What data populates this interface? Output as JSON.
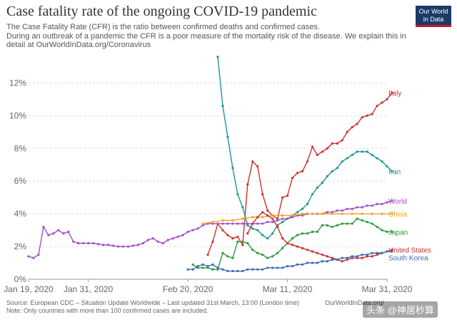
{
  "header": {
    "title": "Case fatality rate of the ongoing COVID-19 pandemic",
    "subtitle_lines": [
      "The Case Fatality Rate (CFR) is the ratio between confirmed deaths and confirmed cases.",
      " During an outbreak of a pandemic the CFR is a poor measure of the mortality risk of the disease. We explain this in",
      "detail at OurWorldInData.org/Coronavirus"
    ]
  },
  "logo": {
    "line1": "Our World",
    "line2": "in Data",
    "bg": "#1a3a68",
    "accent": "#c21a2b"
  },
  "footer": {
    "source": "Source: European CDC – Situation Update Worldwide – Last updated 31st March, 13:00 (London time)",
    "site": "OurWorldInData.org/",
    "note": "Note: Only countries with more than 100 confirmed cases are included."
  },
  "watermark": "头条 @神居秒算",
  "chart_data": {
    "type": "line",
    "title": "Case fatality rate of the ongoing COVID-19 pandemic",
    "x_start": "2020-01-19",
    "x_ticks": [
      {
        "day": 0,
        "label": "Jan 19, 2020"
      },
      {
        "day": 12,
        "label": "Jan 31, 2020"
      },
      {
        "day": 32,
        "label": "Feb 20, 2020"
      },
      {
        "day": 52,
        "label": "Mar 11, 2020"
      },
      {
        "day": 72,
        "label": "Mar 31, 2020"
      }
    ],
    "y_ticks": [
      0,
      2,
      4,
      6,
      8,
      10,
      12
    ],
    "ylim": [
      0,
      13.5
    ],
    "y_unit": "%",
    "grid": "horizontal-dashed",
    "series": [
      {
        "name": "Italy",
        "color": "#d0312d",
        "points": [
          [
            36,
            1.5
          ],
          [
            37,
            2.3
          ],
          [
            38,
            3.4
          ],
          [
            39,
            3.0
          ],
          [
            40,
            2.7
          ],
          [
            41,
            2.5
          ],
          [
            42,
            2.6
          ],
          [
            43,
            2.1
          ],
          [
            44,
            5.8
          ],
          [
            45,
            7.2
          ],
          [
            46,
            6.9
          ],
          [
            47,
            5.2
          ],
          [
            48,
            4.2
          ],
          [
            49,
            3.9
          ],
          [
            50,
            3.7
          ],
          [
            51,
            5.0
          ],
          [
            52,
            5.1
          ],
          [
            53,
            6.2
          ],
          [
            54,
            6.5
          ],
          [
            55,
            6.6
          ],
          [
            56,
            7.2
          ],
          [
            57,
            8.1
          ],
          [
            58,
            7.6
          ],
          [
            59,
            7.8
          ],
          [
            60,
            8.0
          ],
          [
            61,
            8.3
          ],
          [
            62,
            8.3
          ],
          [
            63,
            8.5
          ],
          [
            64,
            9.0
          ],
          [
            65,
            9.3
          ],
          [
            66,
            9.5
          ],
          [
            67,
            9.9
          ],
          [
            68,
            10.0
          ],
          [
            69,
            10.1
          ],
          [
            70,
            10.6
          ],
          [
            71,
            10.8
          ],
          [
            72,
            11.0
          ],
          [
            73,
            11.4
          ]
        ]
      },
      {
        "name": "Iran",
        "color": "#1f9396",
        "points": [
          [
            38,
            13.6
          ],
          [
            39,
            10.6
          ],
          [
            40,
            8.7
          ],
          [
            41,
            6.8
          ],
          [
            42,
            5.2
          ],
          [
            43,
            4.4
          ],
          [
            44,
            3.3
          ],
          [
            45,
            3.1
          ],
          [
            46,
            3.0
          ],
          [
            47,
            2.7
          ],
          [
            48,
            2.5
          ],
          [
            49,
            2.8
          ],
          [
            50,
            3.3
          ],
          [
            51,
            3.5
          ],
          [
            52,
            3.7
          ],
          [
            53,
            3.9
          ],
          [
            54,
            4.1
          ],
          [
            55,
            4.3
          ],
          [
            56,
            4.6
          ],
          [
            57,
            5.2
          ],
          [
            58,
            5.6
          ],
          [
            59,
            5.9
          ],
          [
            60,
            6.3
          ],
          [
            61,
            6.6
          ],
          [
            62,
            6.8
          ],
          [
            63,
            7.2
          ],
          [
            64,
            7.4
          ],
          [
            65,
            7.6
          ],
          [
            66,
            7.8
          ],
          [
            67,
            7.8
          ],
          [
            68,
            7.8
          ],
          [
            69,
            7.6
          ],
          [
            70,
            7.4
          ],
          [
            71,
            7.2
          ],
          [
            72,
            6.9
          ],
          [
            73,
            6.6
          ]
        ]
      },
      {
        "name": "World",
        "color": "#a24fc9",
        "points": [
          [
            0,
            1.4
          ],
          [
            1,
            1.3
          ],
          [
            2,
            1.5
          ],
          [
            3,
            3.2
          ],
          [
            4,
            2.7
          ],
          [
            5,
            2.8
          ],
          [
            6,
            3.0
          ],
          [
            7,
            2.8
          ],
          [
            8,
            2.9
          ],
          [
            9,
            2.3
          ],
          [
            10,
            2.2
          ],
          [
            11,
            2.2
          ],
          [
            12,
            2.2
          ],
          [
            13,
            2.2
          ],
          [
            14,
            2.15
          ],
          [
            15,
            2.1
          ],
          [
            16,
            2.1
          ],
          [
            17,
            2.05
          ],
          [
            18,
            2.0
          ],
          [
            19,
            2.0
          ],
          [
            20,
            2.0
          ],
          [
            21,
            2.05
          ],
          [
            22,
            2.1
          ],
          [
            23,
            2.2
          ],
          [
            24,
            2.4
          ],
          [
            25,
            2.5
          ],
          [
            26,
            2.3
          ],
          [
            27,
            2.2
          ],
          [
            28,
            2.4
          ],
          [
            29,
            2.5
          ],
          [
            30,
            2.6
          ],
          [
            31,
            2.7
          ],
          [
            32,
            2.9
          ],
          [
            33,
            3.0
          ],
          [
            34,
            3.1
          ],
          [
            35,
            3.3
          ],
          [
            36,
            3.4
          ],
          [
            37,
            3.4
          ],
          [
            38,
            3.4
          ],
          [
            39,
            3.4
          ],
          [
            40,
            3.4
          ],
          [
            41,
            3.4
          ],
          [
            42,
            3.4
          ],
          [
            43,
            3.4
          ],
          [
            44,
            3.4
          ],
          [
            45,
            3.4
          ],
          [
            46,
            3.4
          ],
          [
            47,
            3.4
          ],
          [
            48,
            3.5
          ],
          [
            49,
            3.5
          ],
          [
            50,
            3.6
          ],
          [
            51,
            3.7
          ],
          [
            52,
            3.7
          ],
          [
            53,
            3.8
          ],
          [
            54,
            3.9
          ],
          [
            55,
            3.9
          ],
          [
            56,
            4.0
          ],
          [
            57,
            4.0
          ],
          [
            58,
            4.0
          ],
          [
            59,
            4.0
          ],
          [
            60,
            4.1
          ],
          [
            61,
            4.1
          ],
          [
            62,
            4.2
          ],
          [
            63,
            4.2
          ],
          [
            64,
            4.3
          ],
          [
            65,
            4.3
          ],
          [
            66,
            4.4
          ],
          [
            67,
            4.4
          ],
          [
            68,
            4.5
          ],
          [
            69,
            4.5
          ],
          [
            70,
            4.6
          ],
          [
            71,
            4.6
          ],
          [
            72,
            4.7
          ],
          [
            73,
            4.8
          ]
        ]
      },
      {
        "name": "China",
        "color": "#f0a323",
        "points": [
          [
            35,
            3.4
          ],
          [
            37,
            3.5
          ],
          [
            39,
            3.6
          ],
          [
            41,
            3.6
          ],
          [
            43,
            3.7
          ],
          [
            45,
            3.8
          ],
          [
            47,
            3.8
          ],
          [
            49,
            3.9
          ],
          [
            51,
            3.9
          ],
          [
            53,
            3.9
          ],
          [
            55,
            4.0
          ],
          [
            57,
            4.0
          ],
          [
            59,
            4.0
          ],
          [
            61,
            4.0
          ],
          [
            63,
            4.0
          ],
          [
            65,
            4.0
          ],
          [
            67,
            4.0
          ],
          [
            69,
            4.0
          ],
          [
            71,
            4.0
          ],
          [
            73,
            4.0
          ]
        ]
      },
      {
        "name": "Japan",
        "color": "#2f9a3d",
        "points": [
          [
            33,
            0.9
          ],
          [
            34,
            0.7
          ],
          [
            35,
            0.7
          ],
          [
            36,
            0.7
          ],
          [
            37,
            0.6
          ],
          [
            38,
            0.6
          ],
          [
            39,
            1.6
          ],
          [
            40,
            1.4
          ],
          [
            41,
            1.3
          ],
          [
            42,
            2.3
          ],
          [
            43,
            2.3
          ],
          [
            44,
            2.2
          ],
          [
            45,
            1.8
          ],
          [
            46,
            1.6
          ],
          [
            47,
            1.5
          ],
          [
            48,
            1.3
          ],
          [
            49,
            1.4
          ],
          [
            50,
            1.6
          ],
          [
            51,
            1.9
          ],
          [
            52,
            2.2
          ],
          [
            53,
            2.5
          ],
          [
            54,
            2.7
          ],
          [
            55,
            2.8
          ],
          [
            56,
            2.8
          ],
          [
            57,
            2.9
          ],
          [
            58,
            2.9
          ],
          [
            59,
            3.3
          ],
          [
            60,
            3.3
          ],
          [
            61,
            3.2
          ],
          [
            62,
            3.3
          ],
          [
            63,
            3.4
          ],
          [
            64,
            3.4
          ],
          [
            65,
            3.4
          ],
          [
            66,
            3.7
          ],
          [
            67,
            3.6
          ],
          [
            68,
            3.5
          ],
          [
            69,
            3.4
          ],
          [
            70,
            3.2
          ],
          [
            71,
            3.0
          ],
          [
            72,
            2.9
          ],
          [
            73,
            2.9
          ]
        ]
      },
      {
        "name": "United States",
        "color": "#c8302c",
        "points": [
          [
            44,
            2.8
          ],
          [
            45,
            3.4
          ],
          [
            46,
            3.8
          ],
          [
            47,
            4.1
          ],
          [
            48,
            3.9
          ],
          [
            49,
            3.7
          ],
          [
            50,
            3.2
          ],
          [
            51,
            2.5
          ],
          [
            52,
            2.2
          ],
          [
            53,
            2.1
          ],
          [
            54,
            2.0
          ],
          [
            55,
            1.9
          ],
          [
            56,
            1.8
          ],
          [
            57,
            1.7
          ],
          [
            58,
            1.6
          ],
          [
            59,
            1.5
          ],
          [
            60,
            1.4
          ],
          [
            61,
            1.3
          ],
          [
            62,
            1.2
          ],
          [
            63,
            1.1
          ],
          [
            64,
            1.2
          ],
          [
            65,
            1.3
          ],
          [
            66,
            1.3
          ],
          [
            67,
            1.3
          ],
          [
            68,
            1.4
          ],
          [
            69,
            1.4
          ],
          [
            70,
            1.5
          ],
          [
            71,
            1.6
          ],
          [
            72,
            1.7
          ],
          [
            73,
            1.8
          ]
        ]
      },
      {
        "name": "South Korea",
        "color": "#3d6ab3",
        "points": [
          [
            32,
            0.6
          ],
          [
            33,
            0.6
          ],
          [
            34,
            0.8
          ],
          [
            35,
            0.9
          ],
          [
            36,
            0.8
          ],
          [
            37,
            0.9
          ],
          [
            38,
            0.7
          ],
          [
            39,
            0.6
          ],
          [
            40,
            0.5
          ],
          [
            41,
            0.5
          ],
          [
            42,
            0.5
          ],
          [
            43,
            0.5
          ],
          [
            44,
            0.6
          ],
          [
            45,
            0.6
          ],
          [
            46,
            0.6
          ],
          [
            47,
            0.6
          ],
          [
            48,
            0.7
          ],
          [
            49,
            0.7
          ],
          [
            50,
            0.7
          ],
          [
            51,
            0.7
          ],
          [
            52,
            0.8
          ],
          [
            53,
            0.8
          ],
          [
            54,
            0.9
          ],
          [
            55,
            0.9
          ],
          [
            56,
            1.0
          ],
          [
            57,
            1.0
          ],
          [
            58,
            1.0
          ],
          [
            59,
            1.1
          ],
          [
            60,
            1.1
          ],
          [
            61,
            1.2
          ],
          [
            62,
            1.2
          ],
          [
            63,
            1.3
          ],
          [
            64,
            1.3
          ],
          [
            65,
            1.4
          ],
          [
            66,
            1.4
          ],
          [
            67,
            1.5
          ],
          [
            68,
            1.5
          ],
          [
            69,
            1.6
          ],
          [
            70,
            1.6
          ],
          [
            71,
            1.6
          ],
          [
            72,
            1.7
          ],
          [
            73,
            1.7
          ]
        ]
      }
    ]
  }
}
